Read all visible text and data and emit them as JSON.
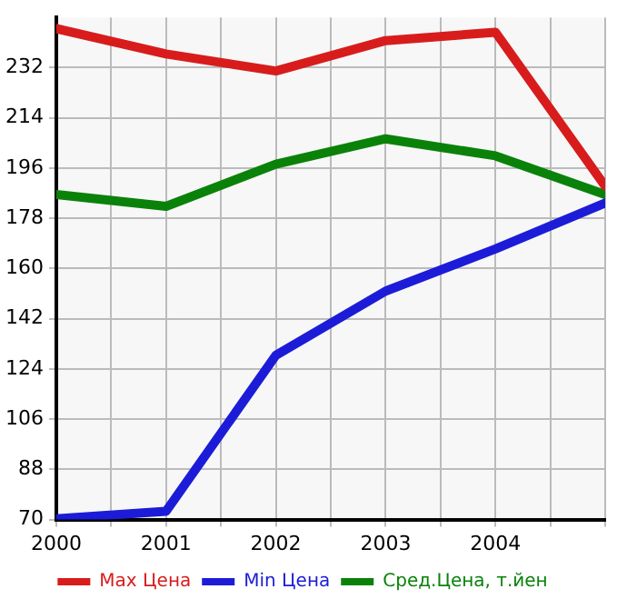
{
  "chart_data": {
    "type": "line",
    "x": [
      2000,
      2001,
      2002,
      2003,
      2004,
      2005
    ],
    "series": [
      {
        "name": "Max Цена",
        "color": "#d81c1c",
        "values": [
          246,
          236.9,
          230.8,
          241.7,
          244.7,
          189.5
        ]
      },
      {
        "name": "Min Цена",
        "color": "#1c1cd8",
        "values": [
          70.3,
          73,
          128.9,
          151.9,
          167,
          183.5
        ]
      },
      {
        "name": "Сред.Цена, т.йен",
        "color": "#0a820a",
        "values": [
          186.5,
          182.3,
          197.4,
          206.5,
          200.4,
          186.5
        ]
      }
    ],
    "xlim": [
      2000,
      2005
    ],
    "xticks": [
      2000,
      {
        "value": 2000.5,
        "label": null
      },
      2001,
      {
        "value": 2001.5,
        "label": null
      },
      2002,
      {
        "value": 2002.5,
        "label": null
      },
      2003,
      {
        "value": 2003.5,
        "label": null
      },
      2004,
      {
        "value": 2004.5,
        "label": null
      },
      {
        "value": 2005,
        "label": null
      }
    ],
    "ylim": [
      70,
      250
    ],
    "yticks": [
      70,
      88,
      106,
      124,
      142,
      160,
      178,
      196,
      214,
      232
    ],
    "grid": true,
    "legend": "bottom",
    "marker": "none",
    "line_style": "solid"
  }
}
